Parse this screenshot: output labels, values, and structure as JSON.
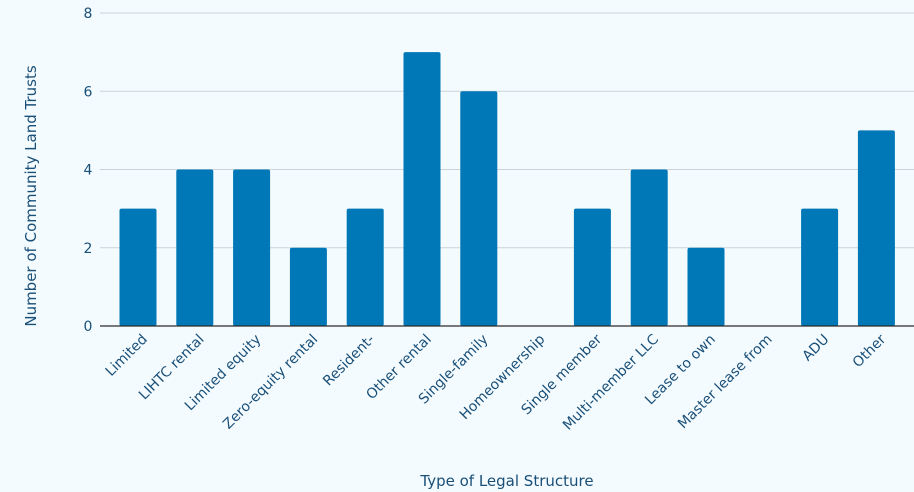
{
  "chart_data": {
    "type": "bar",
    "categories": [
      "Limited",
      "LIHTC rental",
      "Limited equity",
      "Zero-equity rental",
      "Resident-",
      "Other rental",
      "Single-family",
      "Homeownership",
      "Single member",
      "Multi-member LLC",
      "Lease to own",
      "Master lease from",
      "ADU",
      "Other"
    ],
    "values": [
      3,
      4,
      4,
      2,
      3,
      7,
      6,
      0,
      3,
      4,
      2,
      0,
      3,
      5
    ],
    "xlabel": "Type of Legal Structure",
    "ylabel": "Number of Community Land Trusts",
    "ylim": [
      0,
      8
    ],
    "yticks": [
      0,
      2,
      4,
      6,
      8
    ],
    "grid": true,
    "bar_color": "#0077b6",
    "grid_color": "#c9d3d8",
    "text_color": "#1a4f78",
    "background": "#f3fbfe"
  }
}
